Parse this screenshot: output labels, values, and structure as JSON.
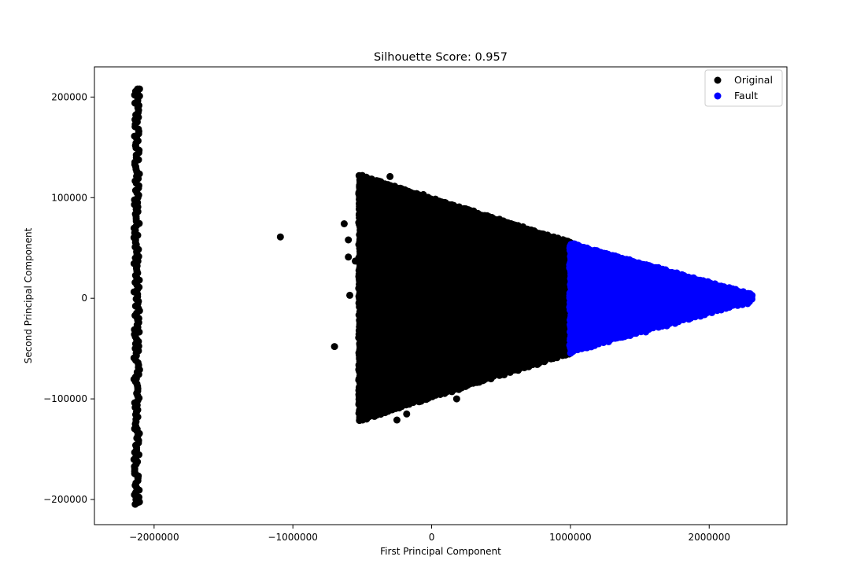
{
  "chart_data": {
    "type": "scatter",
    "title": "Silhouette Score: 0.957",
    "xlabel": "First Principal Component",
    "ylabel": "Second Principal Component",
    "xlim": [
      -2430000,
      2560000
    ],
    "ylim": [
      -225000,
      230000
    ],
    "x_ticks": [
      -2000000,
      -1000000,
      0,
      1000000,
      2000000
    ],
    "x_tick_labels": [
      "−2000000",
      "−1000000",
      "0",
      "1000000",
      "2000000"
    ],
    "y_ticks": [
      -200000,
      -100000,
      0,
      100000,
      200000
    ],
    "y_tick_labels": [
      "−200000",
      "−100000",
      "0",
      "100000",
      "200000"
    ],
    "grid": false,
    "legend_position": "top-right",
    "series": [
      {
        "name": "Original",
        "color": "#000000",
        "regions": [
          {
            "shape": "vertical-strip",
            "x_center": -2125000,
            "x_halfwidth": 20000,
            "y_min": -205000,
            "y_max": 208000
          },
          {
            "shape": "cone",
            "x_left": -520000,
            "x_right": 1000000,
            "y_upper_left": 122000,
            "y_upper_right": 55000,
            "y_lower_left": -122000,
            "y_lower_right": -55000
          }
        ],
        "points": [
          [
            -2140000,
            202000
          ],
          [
            -2105000,
            208000
          ],
          [
            -2130000,
            150000
          ],
          [
            -2120000,
            95000
          ],
          [
            -2135000,
            40000
          ],
          [
            -2110000,
            -20000
          ],
          [
            -2128000,
            -80000
          ],
          [
            -2122000,
            -130000
          ],
          [
            -2132000,
            -175000
          ],
          [
            -2118000,
            -203000
          ],
          [
            -1090000,
            61000
          ],
          [
            -700000,
            -48000
          ],
          [
            -630000,
            74000
          ],
          [
            -600000,
            58000
          ],
          [
            -590000,
            3000
          ],
          [
            -600000,
            41000
          ],
          [
            -550000,
            37000
          ],
          [
            -520000,
            111000
          ],
          [
            -470000,
            108000
          ],
          [
            -300000,
            121000
          ],
          [
            -250000,
            -121000
          ],
          [
            -180000,
            -115000
          ],
          [
            -60000,
            103000
          ],
          [
            100000,
            95000
          ],
          [
            180000,
            -100000
          ],
          [
            400000,
            82000
          ],
          [
            600000,
            62000
          ],
          [
            700000,
            -68000
          ],
          [
            800000,
            -55000
          ],
          [
            930000,
            54000
          ],
          [
            960000,
            -52000
          ],
          [
            -480000,
            -110000
          ],
          [
            -500000,
            -95000
          ],
          [
            -460000,
            -60000
          ]
        ]
      },
      {
        "name": "Fault",
        "color": "#0000ff",
        "regions": [
          {
            "shape": "cone",
            "x_left": 1000000,
            "x_right": 2320000,
            "y_upper_left": 54000,
            "y_upper_right": 3000,
            "y_lower_left": -54000,
            "y_lower_right": -3000
          }
        ],
        "points": [
          [
            1030000,
            54000
          ],
          [
            1100000,
            40000
          ],
          [
            1200000,
            36000
          ],
          [
            1330000,
            37000
          ],
          [
            1380000,
            30000
          ],
          [
            1460000,
            21000
          ],
          [
            1550000,
            14000
          ],
          [
            1700000,
            16000
          ],
          [
            1790000,
            10000
          ],
          [
            1880000,
            9000
          ],
          [
            1140000,
            -44000
          ],
          [
            1250000,
            -40000
          ],
          [
            1350000,
            -34000
          ],
          [
            1420000,
            -27000
          ],
          [
            1490000,
            -17000
          ],
          [
            1590000,
            -13000
          ],
          [
            1740000,
            -11000
          ],
          [
            1900000,
            -7000
          ],
          [
            2100000,
            6000
          ],
          [
            2300000,
            0
          ],
          [
            1040000,
            -51000
          ],
          [
            2050000,
            -6000
          ],
          [
            1650000,
            5000
          ]
        ]
      }
    ]
  }
}
